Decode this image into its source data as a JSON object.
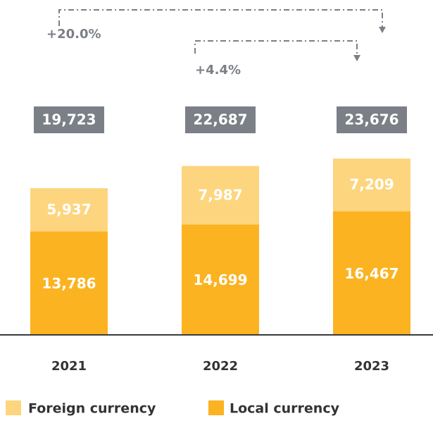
{
  "chart_data": {
    "type": "stacked_bar",
    "categories": [
      "2021",
      "2022",
      "2023"
    ],
    "series": [
      {
        "name": "Local currency",
        "color": "#fbb321",
        "values": [
          13786,
          14699,
          16467
        ],
        "value_labels": [
          "13,786",
          "14,699",
          "16,467"
        ]
      },
      {
        "name": "Foreign currency",
        "color": "#fdd57e",
        "values": [
          5937,
          7987,
          7209
        ],
        "value_labels": [
          "5,937",
          "7,987",
          "7,209"
        ]
      }
    ],
    "totals": {
      "values": [
        19723,
        22687,
        23676
      ],
      "value_labels": [
        "19,723",
        "22,687",
        "23,676"
      ],
      "color": "#7b7f86"
    },
    "annotations": [
      "+20.0%",
      "+4.4%"
    ],
    "legend_order": [
      1,
      0
    ]
  }
}
